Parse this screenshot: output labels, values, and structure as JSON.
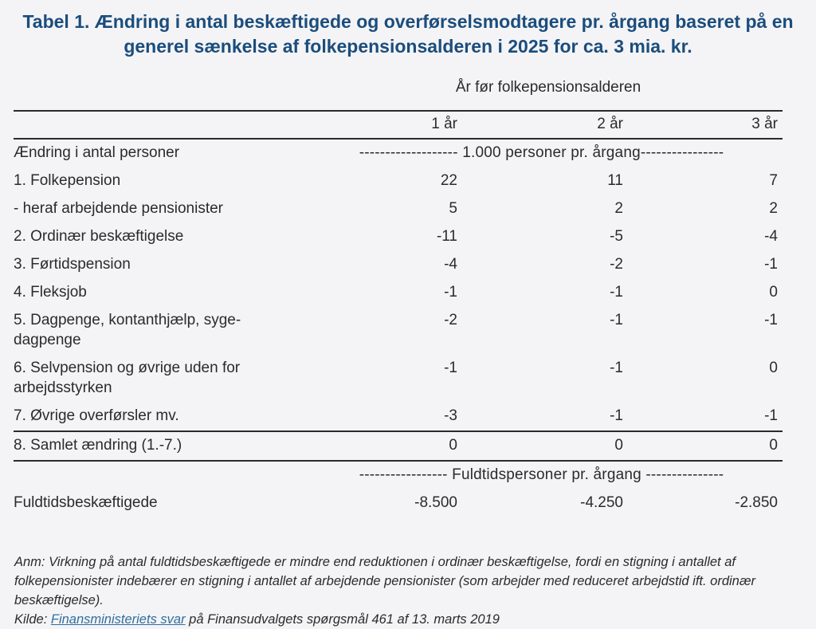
{
  "title": "Tabel 1. Ændring i antal beskæftigede og overførselsmodtagere pr. årgang baseret på en generel sænkelse af folkepensionsalderen i 2025 for ca. 3 mia. kr.",
  "table": {
    "group_header": "År før folkepensionsalderen",
    "columns": [
      "1 år",
      "2 år",
      "3 år"
    ],
    "section1": {
      "label": "Ændring i antal personer",
      "unit_line": "------------------- 1.000 personer pr. årgang----------------"
    },
    "rows": [
      {
        "label": "1. Folkepension",
        "values": [
          "22",
          "11",
          "7"
        ]
      },
      {
        "label": "- heraf arbejdende pensionister",
        "values": [
          "5",
          "2",
          "2"
        ]
      },
      {
        "label": "2. Ordinær beskæftigelse",
        "values": [
          "-11",
          "-5",
          "-4"
        ]
      },
      {
        "label": "3. Førtidspension",
        "values": [
          "-4",
          "-2",
          "-1"
        ]
      },
      {
        "label": "4. Fleksjob",
        "values": [
          "-1",
          "-1",
          "0"
        ]
      },
      {
        "label": "5. Dagpenge, kontanthjælp, syge-dagpenge",
        "values": [
          "-2",
          "-1",
          "-1"
        ]
      },
      {
        "label": "6. Selvpension og øvrige uden for arbejdsstyrken",
        "values": [
          "-1",
          "-1",
          "0"
        ]
      },
      {
        "label": "7. Øvrige overførsler mv.",
        "values": [
          "-3",
          "-1",
          "-1"
        ]
      }
    ],
    "total_row": {
      "label": "8. Samlet ændring (1.-7.)",
      "values": [
        "0",
        "0",
        "0"
      ]
    },
    "section2": {
      "unit_line": "----------------- Fuldtidspersoner pr. årgang ---------------",
      "row": {
        "label": "Fuldtidsbeskæftigede",
        "values": [
          "-8.500",
          "-4.250",
          "-2.850"
        ]
      }
    }
  },
  "notes": {
    "anm": "Anm: Virkning på antal fuldtidsbeskæftigede er mindre end reduktionen i ordinær beskæftigelse, fordi en stigning i antallet af folkepensionister indebærer en stigning i antallet af arbejdende pensionister (som arbejder med reduceret arbejdstid ift. ordinær beskæftigelse).",
    "kilde_prefix": "Kilde: ",
    "kilde_link": "Finansministeriets svar",
    "kilde_suffix": " på Finansudvalgets spørgsmål 461 af 13. marts 2019"
  },
  "colors": {
    "title_blue": "#1b4d7c",
    "text": "#2b2b2b",
    "link_blue": "#2f6f9f",
    "background": "#f4f4f6",
    "rule": "#2b2b2b"
  },
  "chart_data": {
    "type": "table",
    "title": "Tabel 1. Ændring i antal beskæftigede og overførselsmodtagere pr. årgang baseret på en generel sænkelse af folkepensionsalderen i 2025 for ca. 3 mia. kr.",
    "column_group": "År før folkepensionsalderen",
    "categories": [
      "1 år",
      "2 år",
      "3 år"
    ],
    "unit_section1": "1.000 personer pr. årgang",
    "series": [
      {
        "name": "1. Folkepension",
        "values": [
          22,
          11,
          7
        ]
      },
      {
        "name": "- heraf arbejdende pensionister",
        "values": [
          5,
          2,
          2
        ]
      },
      {
        "name": "2. Ordinær beskæftigelse",
        "values": [
          -11,
          -5,
          -4
        ]
      },
      {
        "name": "3. Førtidspension",
        "values": [
          -4,
          -2,
          -1
        ]
      },
      {
        "name": "4. Fleksjob",
        "values": [
          -1,
          -1,
          0
        ]
      },
      {
        "name": "5. Dagpenge, kontanthjælp, sygedagpenge",
        "values": [
          -2,
          -1,
          -1
        ]
      },
      {
        "name": "6. Selvpension og øvrige uden for arbejdsstyrken",
        "values": [
          -1,
          -1,
          0
        ]
      },
      {
        "name": "7. Øvrige overførsler mv.",
        "values": [
          -3,
          -1,
          -1
        ]
      },
      {
        "name": "8. Samlet ændring (1.-7.)",
        "values": [
          0,
          0,
          0
        ]
      }
    ],
    "unit_section2": "Fuldtidspersoner pr. årgang",
    "series_fuldtid": [
      {
        "name": "Fuldtidsbeskæftigede",
        "values": [
          -8500,
          -4250,
          -2850
        ]
      }
    ]
  }
}
